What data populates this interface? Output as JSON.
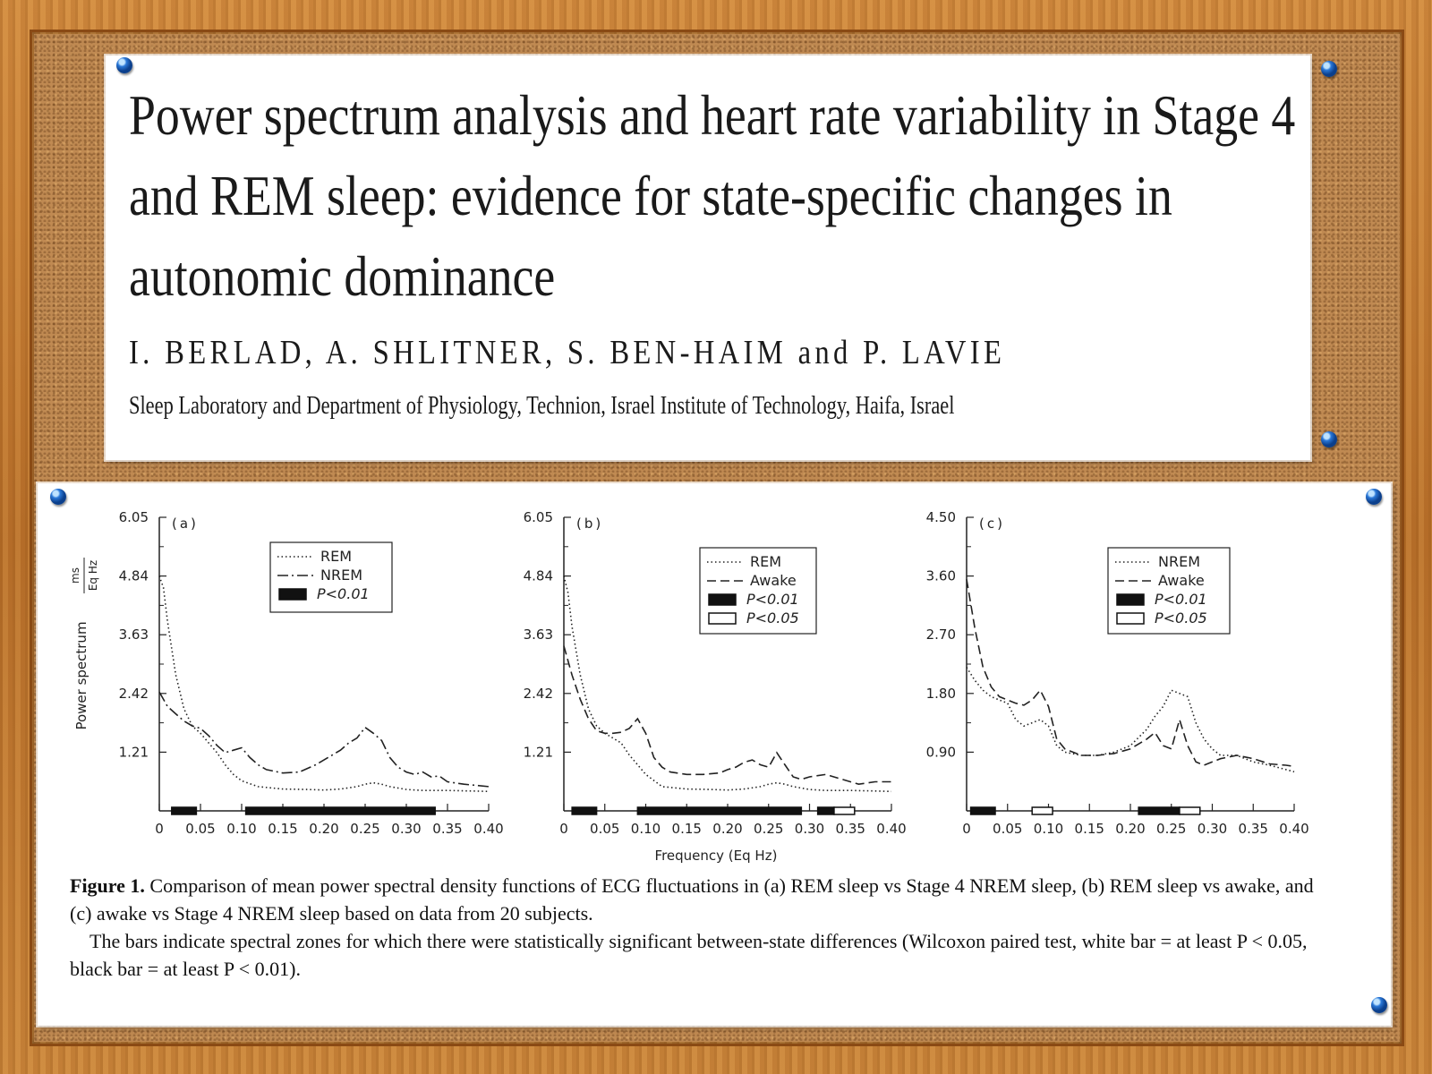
{
  "paper": {
    "title_lines": [
      "Power spectrum analysis and heart rate variability in Stage 4",
      "and REM sleep: evidence for state-specific changes in",
      "autonomic dominance"
    ],
    "authors": "I. BERLAD, A. SHLITNER, S. BEN-HAIM and P. LAVIE",
    "affiliation": "Sleep Laboratory and Department of Physiology, Technion, Israel Institute of Technology, Haifa, Israel"
  },
  "figure": {
    "ylabel": "Power spectrum",
    "yunit_num": "ms",
    "yunit_den": "Eq Hz",
    "xlabel": "Frequency (Eq Hz)",
    "caption_label": "Figure 1.",
    "caption_text": "Comparison of mean power spectral density functions of ECG fluctuations in (a) REM sleep vs Stage 4 NREM sleep, (b) REM sleep vs awake, and (c) awake vs Stage 4 NREM sleep based on data from 20 subjects.",
    "caption_note": "The bars indicate spectral zones for which there were statistically significant between-state differences (Wilcoxon paired test, white bar = at least P < 0.05, black bar = at least P < 0.01)."
  },
  "chart_data": [
    {
      "type": "line",
      "panel_label": "(a)",
      "xlim": [
        0,
        0.4
      ],
      "ylim": [
        0,
        6.05
      ],
      "x_ticks": [
        "0",
        "0.05",
        "0.10",
        "0.15",
        "0.20",
        "0.25",
        "0.30",
        "0.35",
        "0.40"
      ],
      "y_ticks": [
        "1.21",
        "2.42",
        "3.63",
        "4.84",
        "6.05"
      ],
      "legend_position": "top-right",
      "series": [
        {
          "name": "REM",
          "style": "dotted",
          "x": [
            0.0,
            0.005,
            0.01,
            0.02,
            0.03,
            0.04,
            0.05,
            0.06,
            0.07,
            0.08,
            0.09,
            0.1,
            0.12,
            0.15,
            0.18,
            0.2,
            0.22,
            0.24,
            0.25,
            0.26,
            0.27,
            0.28,
            0.3,
            0.32,
            0.35,
            0.38,
            0.4
          ],
          "y": [
            4.84,
            4.6,
            3.9,
            2.8,
            2.1,
            1.75,
            1.6,
            1.4,
            1.2,
            0.95,
            0.75,
            0.62,
            0.5,
            0.45,
            0.44,
            0.43,
            0.45,
            0.5,
            0.55,
            0.58,
            0.55,
            0.5,
            0.44,
            0.42,
            0.42,
            0.41,
            0.4
          ]
        },
        {
          "name": "NREM",
          "style": "dash-dot",
          "x": [
            0.0,
            0.01,
            0.02,
            0.03,
            0.04,
            0.05,
            0.06,
            0.07,
            0.08,
            0.09,
            0.1,
            0.11,
            0.12,
            0.13,
            0.15,
            0.17,
            0.19,
            0.2,
            0.22,
            0.23,
            0.24,
            0.25,
            0.26,
            0.27,
            0.28,
            0.29,
            0.3,
            0.31,
            0.32,
            0.33,
            0.34,
            0.35,
            0.37,
            0.4
          ],
          "y": [
            2.45,
            2.15,
            2.0,
            1.85,
            1.75,
            1.7,
            1.55,
            1.35,
            1.2,
            1.25,
            1.3,
            1.1,
            0.95,
            0.85,
            0.78,
            0.8,
            0.95,
            1.05,
            1.25,
            1.4,
            1.5,
            1.72,
            1.6,
            1.45,
            1.1,
            0.9,
            0.8,
            0.75,
            0.8,
            0.7,
            0.72,
            0.6,
            0.55,
            0.5
          ]
        }
      ],
      "significance_bars": [
        {
          "from": 0.015,
          "to": 0.045,
          "p": "P<0.01"
        },
        {
          "from": 0.105,
          "to": 0.335,
          "p": "P<0.01"
        }
      ]
    },
    {
      "type": "line",
      "panel_label": "(b)",
      "xlim": [
        0,
        0.4
      ],
      "ylim": [
        0,
        6.05
      ],
      "x_ticks": [
        "0",
        "0.05",
        "0.10",
        "0.15",
        "0.20",
        "0.25",
        "0.30",
        "0.35",
        "0.40"
      ],
      "y_ticks": [
        "1.21",
        "2.42",
        "3.63",
        "4.84",
        "6.05"
      ],
      "legend_position": "top-right",
      "series": [
        {
          "name": "REM",
          "style": "dotted",
          "x": [
            0.0,
            0.005,
            0.01,
            0.02,
            0.03,
            0.04,
            0.05,
            0.06,
            0.07,
            0.08,
            0.09,
            0.1,
            0.12,
            0.15,
            0.18,
            0.2,
            0.22,
            0.24,
            0.25,
            0.26,
            0.27,
            0.28,
            0.3,
            0.32,
            0.35,
            0.38,
            0.4
          ],
          "y": [
            4.84,
            4.5,
            3.8,
            2.8,
            2.1,
            1.75,
            1.6,
            1.5,
            1.4,
            1.15,
            0.95,
            0.75,
            0.5,
            0.45,
            0.44,
            0.43,
            0.45,
            0.5,
            0.55,
            0.58,
            0.55,
            0.5,
            0.44,
            0.42,
            0.42,
            0.41,
            0.4
          ]
        },
        {
          "name": "Awake",
          "style": "dashed",
          "x": [
            0.0,
            0.01,
            0.02,
            0.03,
            0.04,
            0.05,
            0.06,
            0.07,
            0.08,
            0.09,
            0.1,
            0.11,
            0.12,
            0.13,
            0.15,
            0.17,
            0.19,
            0.2,
            0.21,
            0.22,
            0.23,
            0.24,
            0.25,
            0.26,
            0.27,
            0.28,
            0.29,
            0.3,
            0.32,
            0.34,
            0.36,
            0.38,
            0.4
          ],
          "y": [
            3.4,
            2.8,
            2.3,
            1.9,
            1.65,
            1.6,
            1.6,
            1.62,
            1.7,
            1.9,
            1.6,
            1.1,
            0.9,
            0.8,
            0.75,
            0.75,
            0.78,
            0.85,
            0.9,
            1.0,
            1.05,
            0.95,
            0.9,
            1.2,
            0.95,
            0.7,
            0.65,
            0.7,
            0.75,
            0.65,
            0.55,
            0.6,
            0.6
          ]
        }
      ],
      "significance_bars": [
        {
          "from": 0.01,
          "to": 0.04,
          "p": "P<0.01"
        },
        {
          "from": 0.09,
          "to": 0.29,
          "p": "P<0.01"
        },
        {
          "from": 0.31,
          "to": 0.33,
          "p": "P<0.01"
        },
        {
          "from": 0.33,
          "to": 0.355,
          "p": "P<0.05"
        }
      ]
    },
    {
      "type": "line",
      "panel_label": "(c)",
      "xlim": [
        0,
        0.4
      ],
      "ylim": [
        0,
        4.5
      ],
      "x_ticks": [
        "0",
        "0.05",
        "0.10",
        "0.15",
        "0.20",
        "0.25",
        "0.30",
        "0.35",
        "0.40"
      ],
      "y_ticks": [
        "0.90",
        "1.80",
        "2.70",
        "3.60",
        "4.50"
      ],
      "legend_position": "top-right",
      "series": [
        {
          "name": "NREM",
          "style": "dotted",
          "x": [
            0.0,
            0.01,
            0.02,
            0.03,
            0.04,
            0.05,
            0.06,
            0.07,
            0.08,
            0.09,
            0.1,
            0.11,
            0.12,
            0.14,
            0.16,
            0.18,
            0.2,
            0.22,
            0.23,
            0.24,
            0.25,
            0.26,
            0.27,
            0.28,
            0.29,
            0.3,
            0.31,
            0.33,
            0.35,
            0.37,
            0.4
          ],
          "y": [
            2.2,
            2.0,
            1.85,
            1.75,
            1.7,
            1.65,
            1.4,
            1.3,
            1.35,
            1.4,
            1.3,
            1.0,
            0.9,
            0.85,
            0.85,
            0.9,
            1.0,
            1.25,
            1.45,
            1.6,
            1.85,
            1.8,
            1.75,
            1.35,
            1.1,
            0.95,
            0.85,
            0.85,
            0.75,
            0.7,
            0.6
          ]
        },
        {
          "name": "Awake",
          "style": "dashed",
          "x": [
            0.0,
            0.01,
            0.02,
            0.03,
            0.04,
            0.05,
            0.06,
            0.07,
            0.08,
            0.09,
            0.1,
            0.11,
            0.12,
            0.14,
            0.16,
            0.18,
            0.2,
            0.22,
            0.23,
            0.24,
            0.25,
            0.26,
            0.27,
            0.28,
            0.29,
            0.3,
            0.31,
            0.33,
            0.35,
            0.37,
            0.39,
            0.4
          ],
          "y": [
            3.55,
            2.8,
            2.2,
            1.9,
            1.75,
            1.7,
            1.65,
            1.62,
            1.7,
            1.85,
            1.6,
            1.1,
            0.95,
            0.85,
            0.85,
            0.88,
            0.95,
            1.1,
            1.2,
            1.0,
            0.95,
            1.4,
            1.0,
            0.75,
            0.7,
            0.75,
            0.8,
            0.85,
            0.8,
            0.72,
            0.7,
            0.68
          ]
        }
      ],
      "significance_bars": [
        {
          "from": 0.005,
          "to": 0.035,
          "p": "P<0.01"
        },
        {
          "from": 0.08,
          "to": 0.105,
          "p": "P<0.05"
        },
        {
          "from": 0.21,
          "to": 0.26,
          "p": "P<0.01"
        },
        {
          "from": 0.26,
          "to": 0.285,
          "p": "P<0.05"
        }
      ]
    }
  ]
}
